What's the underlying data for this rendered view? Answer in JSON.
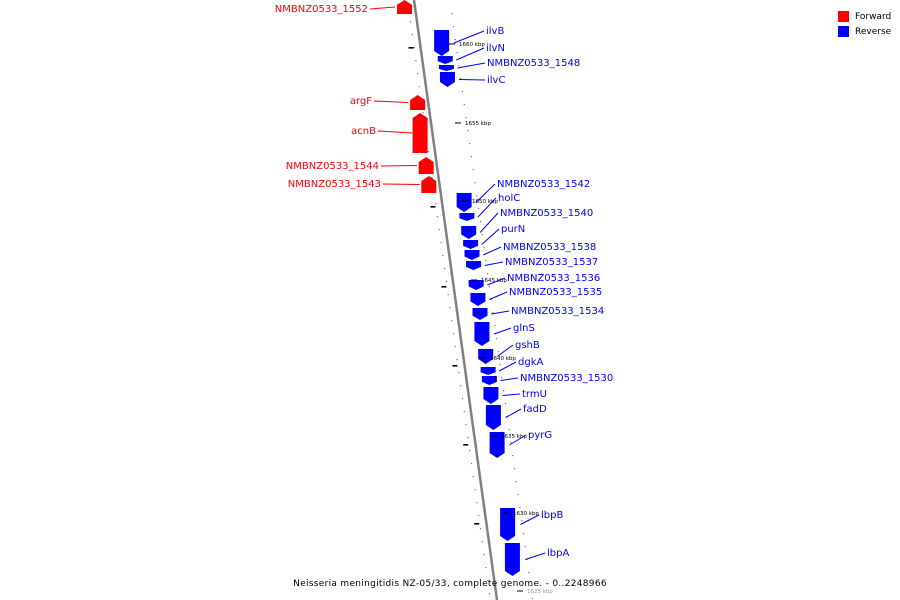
{
  "legend": [
    {
      "label": "Forward",
      "color": "#ff0000"
    },
    {
      "label": "Reverse",
      "color": "#0000ff"
    }
  ],
  "caption": "Neisseria meningitidis NZ-05/33, complete genome. - 0..2248966",
  "colors": {
    "forward": "#ff0000",
    "reverse": "#0000ff",
    "backbone": "#808080"
  },
  "ticks": [
    "1660 kbp",
    "1655 kbp",
    "1650 kbp",
    "1645 kbp",
    "1640 kbp",
    "1635 kbp",
    "1630 kbp",
    "1625 kbp"
  ],
  "features": [
    {
      "name": "NMBNZ0533_1552",
      "strand": "forward"
    },
    {
      "name": "ilvB",
      "strand": "reverse"
    },
    {
      "name": "ilvN",
      "strand": "reverse"
    },
    {
      "name": "NMBNZ0533_1548",
      "strand": "reverse"
    },
    {
      "name": "ilvC",
      "strand": "reverse"
    },
    {
      "name": "argF",
      "strand": "forward"
    },
    {
      "name": "acnB",
      "strand": "forward"
    },
    {
      "name": "NMBNZ0533_1544",
      "strand": "forward"
    },
    {
      "name": "NMBNZ0533_1543",
      "strand": "forward"
    },
    {
      "name": "NMBNZ0533_1542",
      "strand": "reverse"
    },
    {
      "name": "holC",
      "strand": "reverse"
    },
    {
      "name": "NMBNZ0533_1540",
      "strand": "reverse"
    },
    {
      "name": "purN",
      "strand": "reverse"
    },
    {
      "name": "NMBNZ0533_1538",
      "strand": "reverse"
    },
    {
      "name": "NMBNZ0533_1537",
      "strand": "reverse"
    },
    {
      "name": "NMBNZ0533_1536",
      "strand": "reverse"
    },
    {
      "name": "NMBNZ0533_1535",
      "strand": "reverse"
    },
    {
      "name": "NMBNZ0533_1534",
      "strand": "reverse"
    },
    {
      "name": "glnS",
      "strand": "reverse"
    },
    {
      "name": "gshB",
      "strand": "reverse"
    },
    {
      "name": "dgkA",
      "strand": "reverse"
    },
    {
      "name": "NMBNZ0533_1530",
      "strand": "reverse"
    },
    {
      "name": "trmU",
      "strand": "reverse"
    },
    {
      "name": "fadD",
      "strand": "reverse"
    },
    {
      "name": "pyrG",
      "strand": "reverse"
    },
    {
      "name": "lbpB",
      "strand": "reverse"
    },
    {
      "name": "lbpA",
      "strand": "reverse"
    }
  ]
}
